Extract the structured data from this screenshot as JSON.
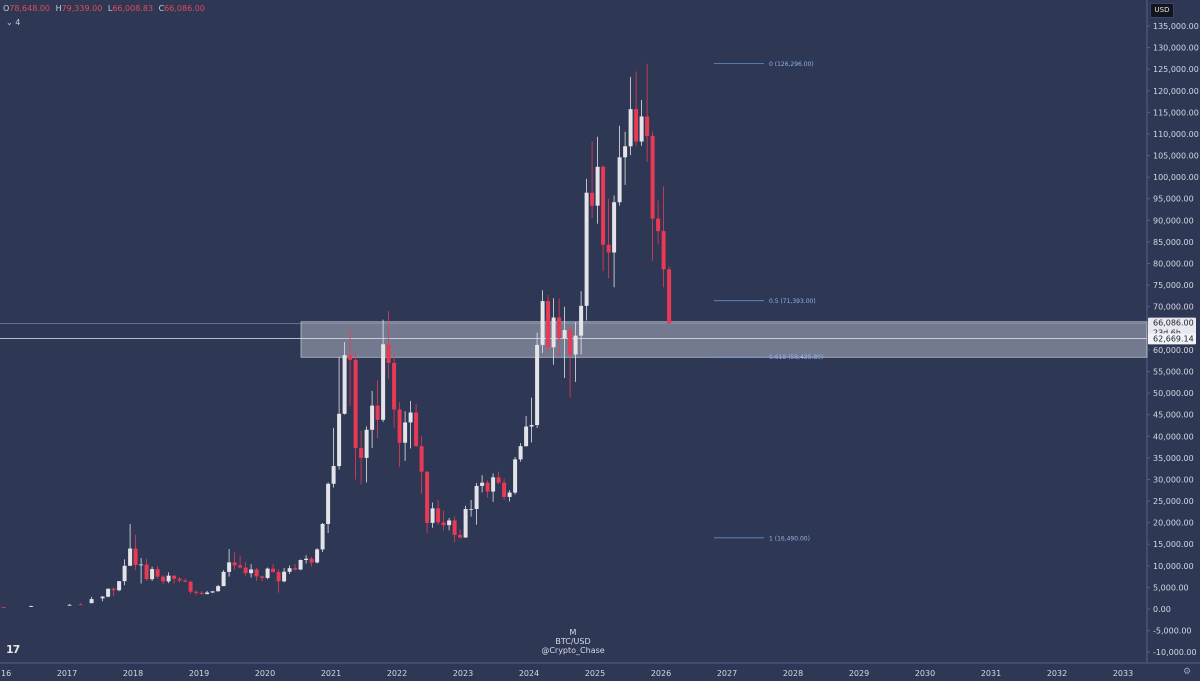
{
  "legend": {
    "open_label": "O",
    "open": "78,648.00",
    "high_label": "H",
    "high": "79,339.00",
    "low_label": "L",
    "low": "66,008.83",
    "close_label": "C",
    "close": "66,086.00"
  },
  "indicator": {
    "collapse_glyph": "⌄",
    "count": "4"
  },
  "currency_button": "USD",
  "watermark": {
    "interval": "M",
    "symbol": "BTC/USD",
    "author": "@Crypto_Chase"
  },
  "tv_logo": "17",
  "settings_icon": "⚙",
  "price_labels": {
    "last_price": "66,086.00",
    "countdown": "23d 6h",
    "crosshair_price": "62,669.14"
  },
  "colors": {
    "background": "#2e3754",
    "up_candle": "#e3e3e8",
    "down_candle": "#e83a55",
    "fib_line": "#5e8fcf",
    "fib_text": "#8fb3e6",
    "zone_fill": "#c8cbd6",
    "axis_text": "#d4d8e4"
  },
  "chart_data": {
    "type": "candlestick",
    "title": "",
    "xlabel": "",
    "ylabel": "",
    "interval": "M",
    "ylim": [
      -11000,
      137000
    ],
    "y_ticks": [
      "135,000.00",
      "130,000.00",
      "125,000.00",
      "120,000.00",
      "115,000.00",
      "110,000.00",
      "105,000.00",
      "100,000.00",
      "95,000.00",
      "90,000.00",
      "85,000.00",
      "80,000.00",
      "75,000.00",
      "70,000.00",
      "65,000.00",
      "60,000.00",
      "55,000.00",
      "50,000.00",
      "45,000.00",
      "40,000.00",
      "35,000.00",
      "30,000.00",
      "25,000.00",
      "20,000.00",
      "15,000.00",
      "10,000.00",
      "5,000.00",
      "0.00",
      "-5,000.00",
      "-10,000.00"
    ],
    "x_ticks": [
      "16",
      "2017",
      "2018",
      "2019",
      "2020",
      "2021",
      "2022",
      "2023",
      "2024",
      "2025",
      "2026",
      "2027",
      "2028",
      "2029",
      "2030",
      "2031",
      "2032",
      "2033"
    ],
    "candles": [
      [
        "2016-01",
        430,
        440,
        350,
        370
      ],
      [
        "2016-06",
        500,
        780,
        450,
        670
      ],
      [
        "2017-01",
        960,
        1150,
        750,
        970
      ],
      [
        "2017-03",
        1080,
        1300,
        890,
        1070
      ],
      [
        "2017-05",
        1350,
        2800,
        1350,
        2300
      ],
      [
        "2017-07",
        2480,
        3000,
        1800,
        2860
      ],
      [
        "2017-08",
        2860,
        4750,
        2700,
        4700
      ],
      [
        "2017-09",
        4700,
        4980,
        2980,
        4340
      ],
      [
        "2017-10",
        4340,
        6470,
        4100,
        6450
      ],
      [
        "2017-11",
        6450,
        11500,
        5500,
        10000
      ],
      [
        "2017-12",
        10000,
        19700,
        10000,
        14000
      ],
      [
        "2018-01",
        14000,
        17200,
        9000,
        10200
      ],
      [
        "2018-02",
        10200,
        11800,
        5900,
        10300
      ],
      [
        "2018-03",
        10300,
        11700,
        6500,
        6900
      ],
      [
        "2018-04",
        6900,
        9800,
        6500,
        9240
      ],
      [
        "2018-05",
        9240,
        10000,
        7000,
        7500
      ],
      [
        "2018-06",
        7500,
        7800,
        5750,
        6400
      ],
      [
        "2018-07",
        6400,
        8500,
        6000,
        7730
      ],
      [
        "2018-08",
        7730,
        7760,
        5880,
        7000
      ],
      [
        "2018-09",
        7000,
        7400,
        6100,
        6600
      ],
      [
        "2018-10",
        6600,
        7000,
        6200,
        6300
      ],
      [
        "2018-11",
        6300,
        6600,
        3500,
        4000
      ],
      [
        "2018-12",
        4000,
        4300,
        3150,
        3740
      ],
      [
        "2019-01",
        3740,
        4100,
        3350,
        3460
      ],
      [
        "2019-02",
        3460,
        4200,
        3400,
        3820
      ],
      [
        "2019-03",
        3820,
        4100,
        3700,
        4100
      ],
      [
        "2019-04",
        4100,
        5600,
        4050,
        5300
      ],
      [
        "2019-05",
        5300,
        9000,
        5300,
        8600
      ],
      [
        "2019-06",
        8600,
        13900,
        7500,
        10800
      ],
      [
        "2019-07",
        10800,
        13200,
        9100,
        10100
      ],
      [
        "2019-08",
        10100,
        12300,
        9400,
        9600
      ],
      [
        "2019-09",
        9600,
        10900,
        7700,
        8300
      ],
      [
        "2019-10",
        8300,
        10400,
        7300,
        9150
      ],
      [
        "2019-11",
        9150,
        9500,
        6500,
        7550
      ],
      [
        "2019-12",
        7550,
        7700,
        6400,
        7200
      ],
      [
        "2020-01",
        7200,
        9600,
        6900,
        9350
      ],
      [
        "2020-02",
        9350,
        10500,
        8500,
        8550
      ],
      [
        "2020-03",
        8550,
        9200,
        3800,
        6400
      ],
      [
        "2020-04",
        6400,
        9500,
        6200,
        8630
      ],
      [
        "2020-05",
        8630,
        10100,
        8100,
        9450
      ],
      [
        "2020-06",
        9450,
        10400,
        8900,
        9140
      ],
      [
        "2020-07",
        9140,
        11450,
        8970,
        11350
      ],
      [
        "2020-08",
        11350,
        12480,
        10530,
        11650
      ],
      [
        "2020-09",
        11650,
        12070,
        9880,
        10780
      ],
      [
        "2020-10",
        10780,
        14100,
        10550,
        13800
      ],
      [
        "2020-11",
        13800,
        19900,
        13200,
        19700
      ],
      [
        "2020-12",
        19700,
        29300,
        17600,
        28990
      ],
      [
        "2021-01",
        28990,
        41950,
        28130,
        33100
      ],
      [
        "2021-02",
        33100,
        58350,
        32300,
        45200
      ],
      [
        "2021-03",
        45200,
        61800,
        45000,
        58800
      ],
      [
        "2021-04",
        58800,
        64850,
        47000,
        57700
      ],
      [
        "2021-05",
        57700,
        59500,
        30000,
        37300
      ],
      [
        "2021-06",
        37300,
        41300,
        28800,
        35000
      ],
      [
        "2021-07",
        35000,
        42300,
        29300,
        41500
      ],
      [
        "2021-08",
        41500,
        50500,
        37300,
        47100
      ],
      [
        "2021-09",
        47100,
        52900,
        39600,
        43800
      ],
      [
        "2021-10",
        43800,
        67000,
        43300,
        61300
      ],
      [
        "2021-11",
        61300,
        69000,
        53250,
        57000
      ],
      [
        "2021-12",
        57000,
        59100,
        42000,
        46200
      ],
      [
        "2022-01",
        46200,
        47900,
        32900,
        38500
      ],
      [
        "2022-02",
        38500,
        45800,
        34300,
        43200
      ],
      [
        "2022-03",
        43200,
        48200,
        37200,
        45500
      ],
      [
        "2022-04",
        45500,
        47450,
        37600,
        37700
      ],
      [
        "2022-05",
        37700,
        40000,
        26700,
        31800
      ],
      [
        "2022-06",
        31800,
        31900,
        17600,
        19950
      ],
      [
        "2022-07",
        19950,
        24650,
        18800,
        23300
      ],
      [
        "2022-08",
        23300,
        25200,
        19500,
        20050
      ],
      [
        "2022-09",
        20050,
        22800,
        18150,
        19420
      ],
      [
        "2022-10",
        19420,
        21080,
        18200,
        20500
      ],
      [
        "2022-11",
        20500,
        21450,
        15500,
        17150
      ],
      [
        "2022-12",
        17150,
        18400,
        16300,
        16550
      ],
      [
        "2023-01",
        16550,
        23900,
        16500,
        23150
      ],
      [
        "2023-02",
        23150,
        25250,
        21400,
        23150
      ],
      [
        "2023-03",
        23150,
        29200,
        19550,
        28500
      ],
      [
        "2023-04",
        28500,
        31000,
        27000,
        29250
      ],
      [
        "2023-05",
        29250,
        29800,
        25800,
        27200
      ],
      [
        "2023-06",
        27200,
        31400,
        24800,
        30500
      ],
      [
        "2023-07",
        30500,
        31800,
        28850,
        29250
      ],
      [
        "2023-08",
        29250,
        30200,
        25300,
        25950
      ],
      [
        "2023-09",
        25950,
        27500,
        24900,
        26960
      ],
      [
        "2023-10",
        26960,
        35200,
        26550,
        34650
      ],
      [
        "2023-11",
        34650,
        38400,
        34100,
        37700
      ],
      [
        "2023-12",
        37700,
        44700,
        37600,
        42250
      ],
      [
        "2024-01",
        42250,
        48950,
        38550,
        42600
      ],
      [
        "2024-02",
        42600,
        64000,
        41900,
        61150
      ],
      [
        "2024-03",
        61150,
        73800,
        59300,
        71300
      ],
      [
        "2024-04",
        71300,
        72700,
        59600,
        60600
      ],
      [
        "2024-05",
        60600,
        71950,
        56550,
        67500
      ],
      [
        "2024-06",
        67500,
        71950,
        58400,
        62700
      ],
      [
        "2024-07",
        62700,
        70000,
        53500,
        64600
      ],
      [
        "2024-08",
        64600,
        65600,
        49000,
        58950
      ],
      [
        "2024-09",
        58950,
        66500,
        52550,
        63300
      ],
      [
        "2024-10",
        63300,
        73600,
        58900,
        70200
      ],
      [
        "2024-11",
        70200,
        99600,
        66800,
        96400
      ],
      [
        "2024-12",
        96400,
        108350,
        90500,
        93400
      ],
      [
        "2025-01",
        93400,
        109350,
        89200,
        102400
      ],
      [
        "2025-02",
        102400,
        102750,
        78200,
        84350
      ],
      [
        "2025-03",
        84350,
        95000,
        76600,
        82550
      ],
      [
        "2025-04",
        82550,
        95750,
        74500,
        94200
      ],
      [
        "2025-05",
        94200,
        111900,
        93400,
        104600
      ],
      [
        "2025-06",
        104600,
        110500,
        98200,
        107150
      ],
      [
        "2025-07",
        107150,
        123200,
        105100,
        115750
      ],
      [
        "2025-08",
        115750,
        124450,
        107300,
        108250
      ],
      [
        "2025-09",
        108250,
        117900,
        107250,
        114050
      ],
      [
        "2025-10",
        114050,
        126296,
        103500,
        109550
      ],
      [
        "2025-11",
        109550,
        110600,
        80600,
        90400
      ],
      [
        "2025-12",
        90400,
        94600,
        84400,
        87500
      ],
      [
        "2026-01",
        87500,
        97900,
        74500,
        78648
      ],
      [
        "2026-02",
        78648,
        79339,
        66008.83,
        66086
      ]
    ],
    "fibonacci": [
      {
        "level": "0",
        "value": 126296,
        "label": "0 (126,296.00)"
      },
      {
        "level": "0.5",
        "value": 71393,
        "label": "0.5 (71,393.00)"
      },
      {
        "level": "0.618",
        "value": 58435.89,
        "label": "0.618 (58,435.89)"
      },
      {
        "level": "1",
        "value": 16490,
        "label": "1 (16,490.00)"
      }
    ],
    "support_zone": {
      "from": 58300,
      "to": 66500
    },
    "horizontal_lines": [
      66086,
      62669.14
    ]
  }
}
